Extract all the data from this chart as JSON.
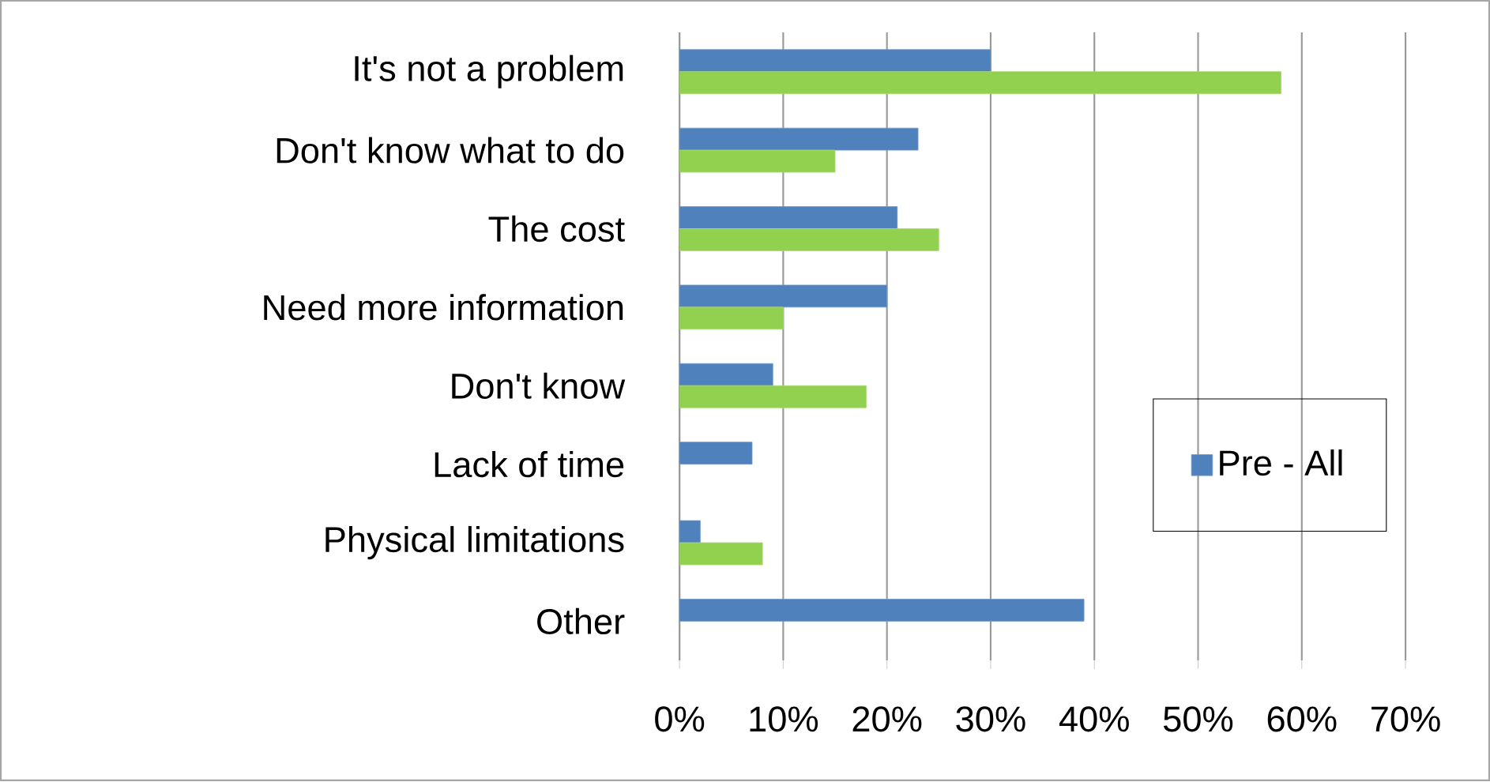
{
  "chart_data": {
    "type": "bar",
    "orientation": "horizontal",
    "categories": [
      "It's not a problem",
      "Don't know what to do",
      "The cost",
      "Need more information",
      "Don't know",
      "Lack of time",
      "Physical limitations",
      "Other"
    ],
    "series": [
      {
        "name": "Pre - All",
        "color": "#4f81bd",
        "values": [
          30,
          23,
          21,
          20,
          9,
          7,
          2,
          39
        ]
      },
      {
        "color": "#92d050",
        "values": [
          58,
          15,
          25,
          10,
          18,
          null,
          8,
          null
        ]
      }
    ],
    "xlim": [
      0,
      70
    ],
    "xticks": [
      {
        "value": 0,
        "label": "0%"
      },
      {
        "value": 10,
        "label": "10%"
      },
      {
        "value": 20,
        "label": "20%"
      },
      {
        "value": 30,
        "label": "30%"
      },
      {
        "value": 40,
        "label": "40%"
      },
      {
        "value": 50,
        "label": "50%"
      },
      {
        "value": 60,
        "label": "60%"
      },
      {
        "value": 70,
        "label": "70%"
      }
    ],
    "grid": "x",
    "legend": "right"
  }
}
